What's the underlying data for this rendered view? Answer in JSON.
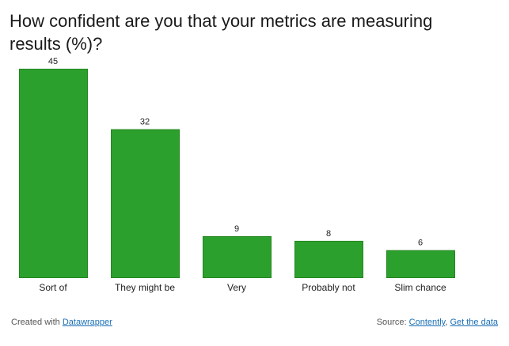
{
  "chart_data": {
    "type": "bar",
    "title": "How confident are you that your metrics are measuring results (%)?",
    "categories": [
      "Sort of",
      "They might be",
      "Very",
      "Probably not",
      "Slim chance"
    ],
    "values": [
      45,
      32,
      9,
      8,
      6
    ],
    "ylim": [
      0,
      45
    ],
    "xlabel": "",
    "ylabel": "",
    "grid": false,
    "legend": "none",
    "bar_color": "#2ca02c",
    "bar_edge_color": "#23861f"
  },
  "footer": {
    "created_prefix": "Created with",
    "created_link": "Datawrapper",
    "source_prefix": "Source:",
    "source_link": "Contently",
    "separator": ",",
    "data_link": "Get the data"
  }
}
